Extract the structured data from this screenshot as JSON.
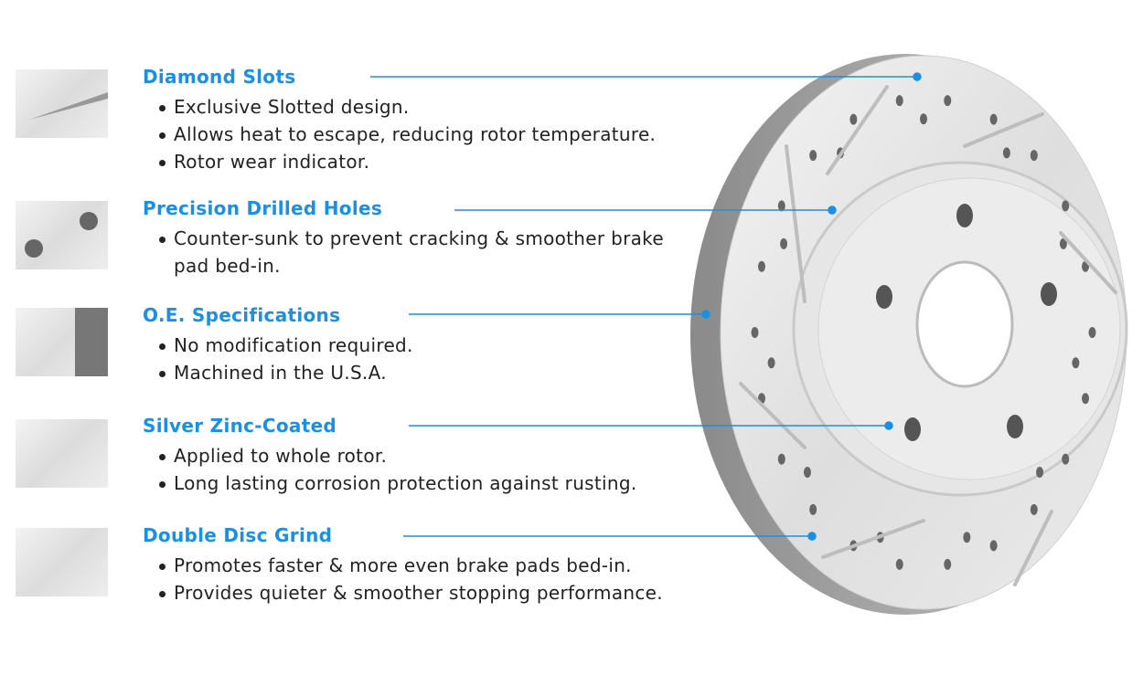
{
  "accent_color": "#1a8fe3",
  "features": [
    {
      "title": "Diamond Slots",
      "icon": "slot-closeup-image",
      "bullets": [
        "Exclusive Slotted design.",
        "Allows heat to escape, reducing rotor temperature.",
        "Rotor wear indicator."
      ]
    },
    {
      "title": "Precision Drilled Holes",
      "icon": "drilled-holes-closeup-image",
      "bullets": [
        "Counter-sunk to prevent cracking & smoother brake pad bed-in."
      ]
    },
    {
      "title": "O.E. Specifications",
      "icon": "rotor-edge-closeup-image",
      "bullets": [
        "No modification required.",
        "Machined in the U.S.A."
      ]
    },
    {
      "title": "Silver Zinc-Coated",
      "icon": "zinc-surface-closeup-image",
      "bullets": [
        "Applied to whole rotor.",
        "Long lasting corrosion protection against rusting."
      ]
    },
    {
      "title": "Double Disc Grind",
      "icon": "ground-surface-closeup-image",
      "bullets": [
        "Promotes faster & more even brake pads bed-in.",
        "Provides quieter & smoother stopping performance."
      ]
    }
  ]
}
